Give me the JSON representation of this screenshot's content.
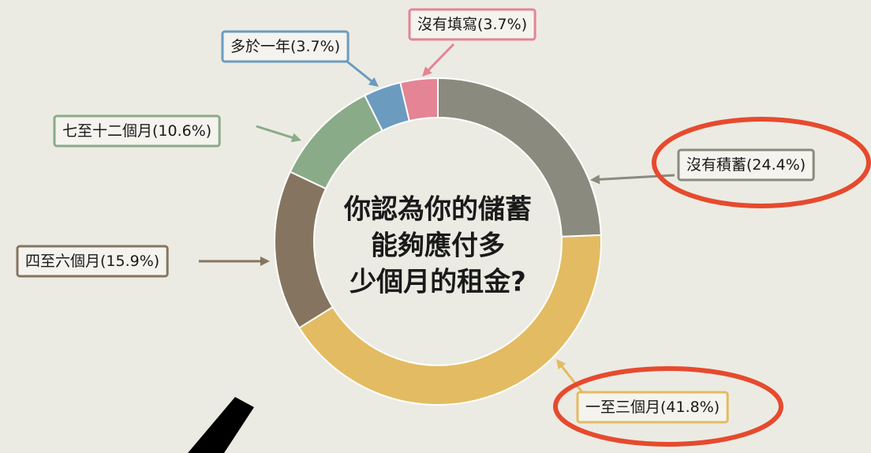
{
  "chart_data": {
    "type": "donut",
    "title_lines": [
      "你認為你的儲蓄",
      "能夠應付多",
      "少個月的租金?"
    ],
    "categories": [
      "沒有積蓄",
      "一至三個月",
      "四至六個月",
      "七至十二個月",
      "多於一年",
      "沒有填寫"
    ],
    "values": [
      24.4,
      41.8,
      15.9,
      10.6,
      3.7,
      3.7
    ],
    "value_labels": [
      "(24.4%)",
      "(41.8%)",
      "(15.9%)",
      "(10.6%)",
      "(3.7%)",
      "(3.7%)"
    ],
    "colors": [
      "#8a8a7e",
      "#e3bb62",
      "#857560",
      "#8aab88",
      "#6b9bbf",
      "#e48494"
    ]
  }
}
